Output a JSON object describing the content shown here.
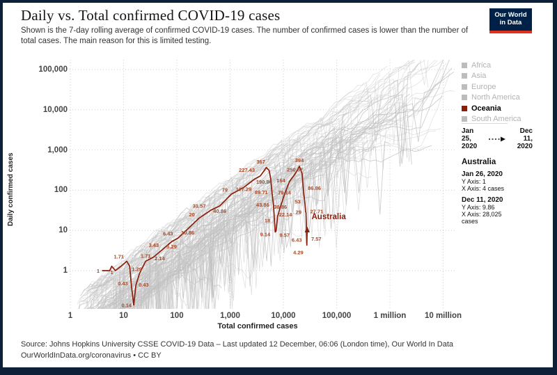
{
  "window": {
    "border_color": "#0e2038"
  },
  "header": {
    "title": "Daily vs. Total confirmed COVID-19 cases",
    "subtitle": "Shown is the 7-day rolling average of confirmed COVID-19 cases. The number of confirmed cases is lower than the number of total cases. The main reason for this is limited testing.",
    "logo": {
      "line1": "Our World",
      "line2": "in Data",
      "bg": "#002147",
      "accent": "#e0301e"
    }
  },
  "legend": {
    "items": [
      {
        "label": "Africa",
        "color": "#bcbcbc",
        "active": false
      },
      {
        "label": "Asia",
        "color": "#bcbcbc",
        "active": false
      },
      {
        "label": "Europe",
        "color": "#bcbcbc",
        "active": false
      },
      {
        "label": "North America",
        "color": "#bcbcbc",
        "active": false
      },
      {
        "label": "Oceania",
        "color": "#8a1e0c",
        "active": true
      },
      {
        "label": "South America",
        "color": "#bcbcbc",
        "active": false
      }
    ]
  },
  "date_range": {
    "start": [
      "Jan",
      "25,",
      "2020"
    ],
    "end": [
      "Dec",
      "11,",
      "2020"
    ]
  },
  "annotation": {
    "country": "Australia",
    "start": {
      "date": "Jan 26, 2020",
      "y_axis": "Y Axis: 1",
      "x_axis": "X Axis: 4 cases"
    },
    "end": {
      "date": "Dec 11, 2020",
      "y_axis": "Y Axis: 9.86",
      "x_axis": "X Axis: 28,025 cases"
    }
  },
  "footer": {
    "line1": "Source: Johns Hopkins University CSSE COVID-19 Data – Last updated 12 December, 06:06 (London time), Our World In Data",
    "line2": "OurWorldInData.org/coronavirus • CC BY"
  },
  "chart_data": {
    "type": "line",
    "title": "Daily vs. Total confirmed COVID-19 cases",
    "xlabel": "Total confirmed cases",
    "ylabel": "Daily confirmed cases",
    "x_scale": "log",
    "y_scale": "log",
    "xlim": [
      1,
      10000000
    ],
    "ylim": [
      1,
      100000
    ],
    "x_ticks": [
      "1",
      "10",
      "100",
      "1,000",
      "10,000",
      "100,000",
      "1 million",
      "10 million"
    ],
    "y_ticks": [
      "1",
      "10",
      "100",
      "1,000",
      "10,000",
      "100,000"
    ],
    "grid": "dotted",
    "grid_color": "#cfcfcf",
    "background_lines": {
      "description": "gray trajectories of all other countries",
      "color": "#cccccc",
      "count": 125
    },
    "series": [
      {
        "name": "Australia",
        "color": "#8a1e0c",
        "label_color": "#a64b2a",
        "end_marker": "arrow-up",
        "series_label": {
          "text": "Australia",
          "total": 30000,
          "daily": 19
        },
        "points": [
          [
            4,
            1,
            "1",
            "end",
            -4,
            3
          ],
          [
            5.5,
            1,
            null,
            null,
            0,
            0
          ],
          [
            6,
            1.29,
            null,
            null,
            0,
            0
          ],
          [
            7,
            1,
            "1",
            "end",
            -3,
            5
          ],
          [
            9,
            1.29,
            null,
            null,
            0,
            0
          ],
          [
            11.5,
            1.71,
            "1.71",
            "end",
            -4,
            -4
          ],
          [
            13,
            1.29,
            "1.29",
            "start",
            3,
            7
          ],
          [
            14,
            0.43,
            "0.43",
            "end",
            -5,
            0
          ],
          [
            15.5,
            0.14,
            "0.14",
            "end",
            -3,
            3
          ],
          [
            17,
            0.43,
            "0.43",
            "start",
            4,
            2
          ],
          [
            20,
            0.86,
            null,
            null,
            0,
            0
          ],
          [
            26,
            1.71,
            "1.71",
            "middle",
            0,
            -5
          ],
          [
            36,
            2.14,
            "2.14",
            "start",
            2,
            4
          ],
          [
            55,
            3.43,
            "3.43",
            "end",
            -6,
            -3
          ],
          [
            80,
            5.29,
            "5.29",
            "middle",
            0,
            10
          ],
          [
            105,
            6.43,
            "6.43",
            "end",
            -7,
            -4
          ],
          [
            160,
            10.86,
            "10.86",
            "middle",
            0,
            8
          ],
          [
            260,
            20,
            "20",
            "end",
            -6,
            -3
          ],
          [
            430,
            31.57,
            "31.57",
            "end",
            -7,
            -4
          ],
          [
            640,
            40.86,
            "40.86",
            "middle",
            0,
            10
          ],
          [
            1050,
            79,
            "79",
            "end",
            -5,
            -4
          ],
          [
            1800,
            117.29,
            "117.29",
            "middle",
            0,
            5
          ],
          [
            2900,
            190.86,
            "190.86",
            "start",
            2,
            7
          ],
          [
            3700,
            227.43,
            "227.43",
            "end",
            -8,
            -6
          ],
          [
            4800,
            367,
            "367",
            "middle",
            -8,
            -6
          ],
          [
            5400,
            310,
            null,
            null,
            0,
            0
          ],
          [
            5800,
            190,
            null,
            null,
            0,
            0
          ],
          [
            6100,
            89.71,
            "89.71",
            "end",
            -6,
            3
          ],
          [
            6500,
            43.86,
            "43.86",
            "end",
            -6,
            3
          ],
          [
            6800,
            18,
            "18",
            "end",
            -6,
            3
          ],
          [
            7000,
            9.14,
            "9.14",
            "end",
            -7,
            6
          ],
          [
            7300,
            9.57,
            "9.57",
            "start",
            5,
            8
          ],
          [
            7800,
            22.14,
            "22.14",
            "start",
            2,
            0
          ],
          [
            8800,
            38.86,
            "38.86",
            "middle",
            0,
            3
          ],
          [
            10500,
            79.14,
            "79.14",
            "middle",
            0,
            0
          ],
          [
            13000,
            164,
            "164",
            "end",
            -6,
            1
          ],
          [
            16500,
            250.57,
            "250.57",
            "middle",
            0,
            -4
          ],
          [
            20000,
            394,
            "394",
            "middle",
            0,
            -6
          ],
          [
            22500,
            260,
            null,
            null,
            0,
            0
          ],
          [
            24000,
            86.86,
            "86.86",
            "start",
            6,
            -4
          ],
          [
            25200,
            53,
            "53",
            "end",
            -6,
            3
          ],
          [
            26200,
            29,
            "29",
            "end",
            -6,
            3
          ],
          [
            26600,
            27.71,
            "27.71",
            "start",
            6,
            1
          ],
          [
            27400,
            6.43,
            "6.43",
            "end",
            -7,
            5
          ],
          [
            27600,
            4.29,
            "4.29",
            "end",
            -5,
            13
          ],
          [
            27850,
            7.57,
            "7.57",
            "start",
            6,
            8
          ],
          [
            28025,
            9.86,
            null,
            null,
            0,
            0
          ]
        ]
      }
    ]
  }
}
